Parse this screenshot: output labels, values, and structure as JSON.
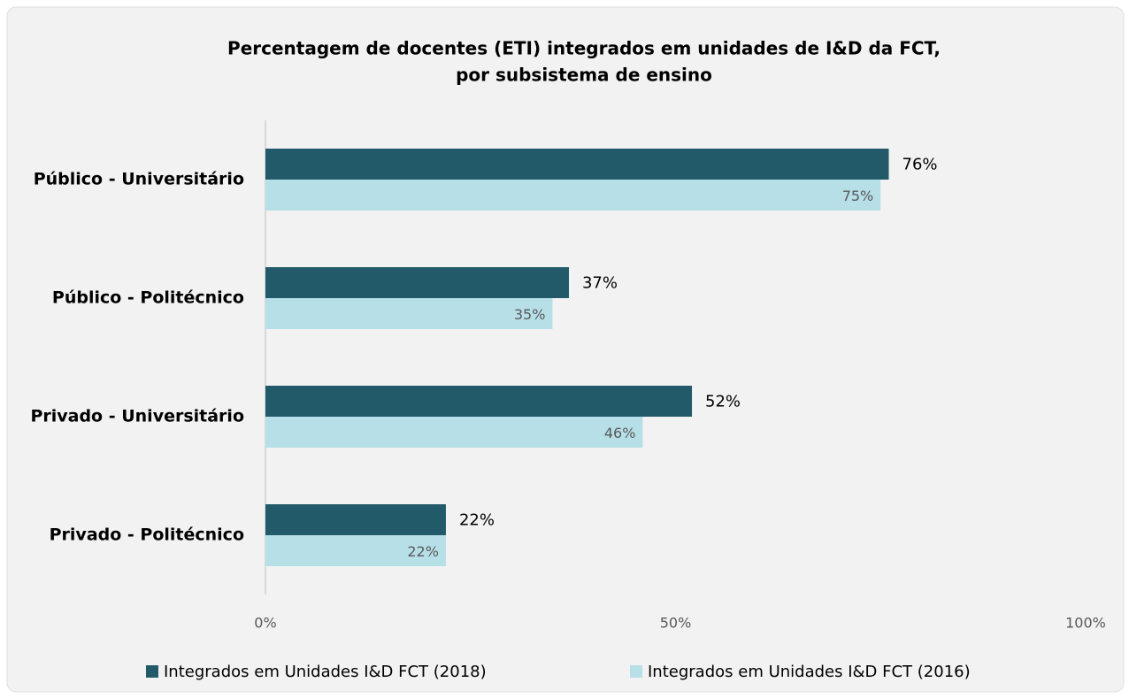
{
  "chart_data": {
    "type": "hbar",
    "title": [
      "Percentagem de docentes (ETI) integrados em unidades de I&D da FCT,",
      "por subsistema de ensino"
    ],
    "categories": [
      "Público - Universitário",
      "Público - Politécnico",
      "Privado - Universitário",
      "Privado - Politécnico"
    ],
    "series": [
      {
        "name": "Integrados em Unidades I&D FCT (2018)",
        "color": "#225a6a",
        "values": [
          76,
          37,
          52,
          22
        ],
        "value_labels": [
          "76%",
          "37%",
          "52%",
          "22%"
        ]
      },
      {
        "name": "Integrados em Unidades I&D FCT (2016)",
        "color": "#b7dfe8",
        "values": [
          75,
          35,
          46,
          22
        ],
        "value_labels": [
          "75%",
          "35%",
          "46%",
          "22%"
        ]
      }
    ],
    "xlim": [
      0,
      100
    ],
    "xticks": [
      {
        "value": 0,
        "label": "0%"
      },
      {
        "value": 50,
        "label": "50%"
      },
      {
        "value": 100,
        "label": "100%"
      }
    ],
    "legend": "bottom"
  }
}
